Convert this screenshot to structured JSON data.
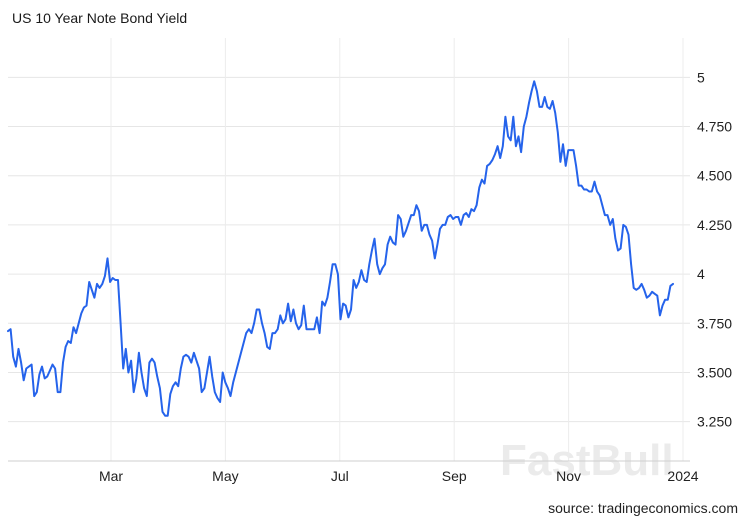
{
  "title": "US 10 Year Note Bond Yield",
  "source": "source: tradingeconomics.com",
  "watermark": "FastBull",
  "chart_data": {
    "type": "line",
    "title": "US 10 Year Note Bond Yield",
    "xlabel": "",
    "ylabel": "",
    "ylim": [
      3.05,
      5.2
    ],
    "grid": true,
    "line_color": "#2563eb",
    "x_tick_labels": [
      "Mar",
      "May",
      "Jul",
      "Sep",
      "Nov",
      "2024"
    ],
    "y_tick_labels": [
      "5",
      "4.750",
      "4.500",
      "4.250",
      "4",
      "3.750",
      "3.500",
      "3.250"
    ],
    "y_ticks": [
      5,
      4.75,
      4.5,
      4.25,
      4,
      3.75,
      3.5,
      3.25
    ],
    "series": [
      {
        "values": [
          3.71,
          3.72,
          3.58,
          3.53,
          3.62,
          3.55,
          3.46,
          3.52,
          3.53,
          3.54,
          3.38,
          3.4,
          3.49,
          3.53,
          3.47,
          3.48,
          3.51,
          3.54,
          3.52,
          3.4,
          3.4,
          3.55,
          3.63,
          3.66,
          3.65,
          3.73,
          3.7,
          3.75,
          3.8,
          3.83,
          3.84,
          3.96,
          3.92,
          3.88,
          3.95,
          3.93,
          3.95,
          3.99,
          4.08,
          3.96,
          3.98,
          3.97,
          3.97,
          3.75,
          3.52,
          3.62,
          3.5,
          3.56,
          3.4,
          3.47,
          3.6,
          3.5,
          3.42,
          3.38,
          3.55,
          3.57,
          3.55,
          3.48,
          3.42,
          3.3,
          3.28,
          3.28,
          3.39,
          3.43,
          3.45,
          3.43,
          3.52,
          3.58,
          3.59,
          3.58,
          3.55,
          3.6,
          3.56,
          3.52,
          3.4,
          3.42,
          3.5,
          3.58,
          3.48,
          3.4,
          3.37,
          3.35,
          3.5,
          3.45,
          3.42,
          3.38,
          3.45,
          3.5,
          3.55,
          3.6,
          3.65,
          3.7,
          3.72,
          3.7,
          3.75,
          3.82,
          3.82,
          3.75,
          3.7,
          3.63,
          3.62,
          3.7,
          3.7,
          3.72,
          3.79,
          3.75,
          3.77,
          3.85,
          3.76,
          3.82,
          3.75,
          3.72,
          3.74,
          3.84,
          3.72,
          3.72,
          3.72,
          3.72,
          3.78,
          3.7,
          3.86,
          3.84,
          3.88,
          3.96,
          4.05,
          4.05,
          4.0,
          3.77,
          3.85,
          3.84,
          3.78,
          3.82,
          3.97,
          3.93,
          3.96,
          4.02,
          3.97,
          3.96,
          4.05,
          4.12,
          4.18,
          4.05,
          4.0,
          4.03,
          4.05,
          4.15,
          4.19,
          4.16,
          4.15,
          4.3,
          4.28,
          4.19,
          4.22,
          4.26,
          4.3,
          4.3,
          4.35,
          4.32,
          4.22,
          4.25,
          4.25,
          4.2,
          4.17,
          4.08,
          4.15,
          4.23,
          4.25,
          4.25,
          4.29,
          4.3,
          4.28,
          4.29,
          4.29,
          4.25,
          4.3,
          4.31,
          4.29,
          4.33,
          4.32,
          4.35,
          4.44,
          4.48,
          4.46,
          4.55,
          4.56,
          4.58,
          4.61,
          4.65,
          4.59,
          4.65,
          4.8,
          4.7,
          4.68,
          4.8,
          4.65,
          4.7,
          4.62,
          4.75,
          4.8,
          4.87,
          4.93,
          4.98,
          4.93,
          4.85,
          4.85,
          4.9,
          4.85,
          4.84,
          4.88,
          4.82,
          4.72,
          4.57,
          4.66,
          4.55,
          4.63,
          4.63,
          4.63,
          4.55,
          4.45,
          4.45,
          4.43,
          4.43,
          4.42,
          4.42,
          4.47,
          4.42,
          4.4,
          4.35,
          4.3,
          4.3,
          4.25,
          4.28,
          4.18,
          4.12,
          4.13,
          4.25,
          4.24,
          4.2,
          4.05,
          3.93,
          3.92,
          3.93,
          3.95,
          3.92,
          3.88,
          3.89,
          3.91,
          3.9,
          3.89,
          3.79,
          3.84,
          3.87,
          3.87,
          3.94,
          3.95
        ]
      }
    ]
  }
}
